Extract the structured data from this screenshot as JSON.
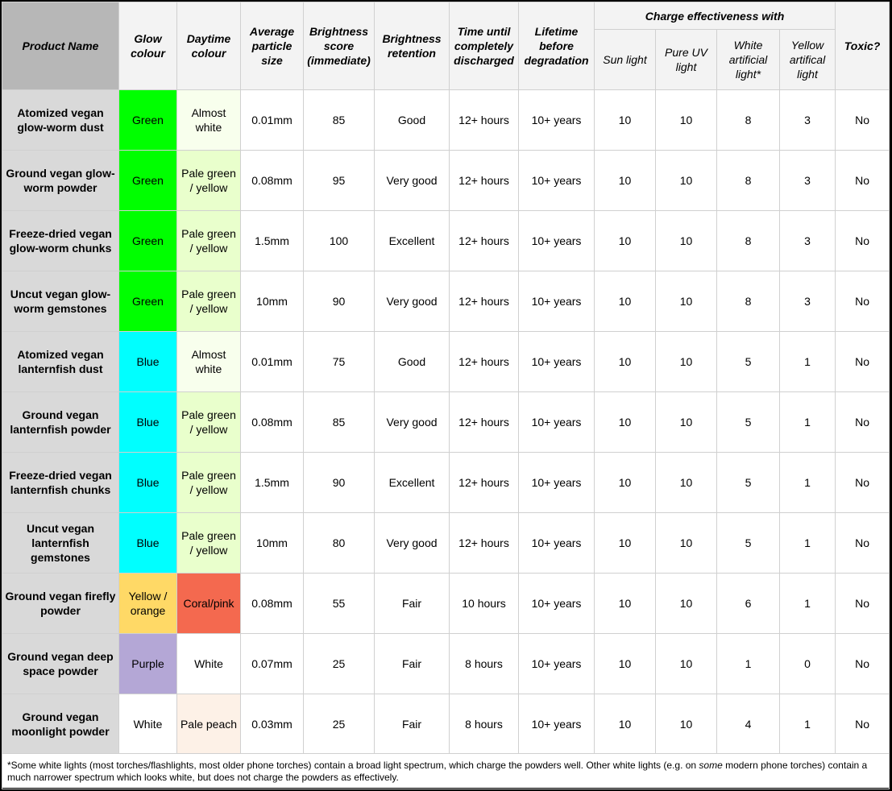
{
  "header": {
    "product_name": "Product Name",
    "glow_colour": "Glow colour",
    "daytime_colour": "Daytime colour",
    "particle_size": "Average particle size",
    "brightness_score": "Brightness score (immediate)",
    "brightness_retention": "Brightness retention",
    "time_discharged": "Time until completely discharged",
    "lifetime": "Lifetime before degradation",
    "charge_group": "Charge effectiveness with",
    "sun": "Sun light",
    "uv": "Pure UV light",
    "white": "White artificial light*",
    "yellow": "Yellow artifical light",
    "toxic": "Toxic?"
  },
  "colors": {
    "green": "#00ff00",
    "blue": "#00ffff",
    "yellow_orange": "#ffd966",
    "purple": "#b4a7d6",
    "white": "#ffffff",
    "almost_white": "#f8ffed",
    "pale_green": "#e9ffcc",
    "coral": "#f4694f",
    "pale_peach": "#fdf1e7"
  },
  "rows": [
    {
      "name": "Atomized vegan glow-worm dust",
      "glow": "Green",
      "day": "Almost white",
      "size": "0.01mm",
      "score": "85",
      "retention": "Good",
      "discharge": "12+ hours",
      "lifetime": "10+ years",
      "sun": "10",
      "uv": "10",
      "white": "8",
      "yellow": "3",
      "toxic": "No"
    },
    {
      "name": "Ground vegan glow-worm powder",
      "glow": "Green",
      "day": "Pale green / yellow",
      "size": "0.08mm",
      "score": "95",
      "retention": "Very good",
      "discharge": "12+ hours",
      "lifetime": "10+ years",
      "sun": "10",
      "uv": "10",
      "white": "8",
      "yellow": "3",
      "toxic": "No"
    },
    {
      "name": "Freeze-dried vegan glow-worm chunks",
      "glow": "Green",
      "day": "Pale green / yellow",
      "size": "1.5mm",
      "score": "100",
      "retention": "Excellent",
      "discharge": "12+ hours",
      "lifetime": "10+ years",
      "sun": "10",
      "uv": "10",
      "white": "8",
      "yellow": "3",
      "toxic": "No"
    },
    {
      "name": "Uncut vegan glow-worm gemstones",
      "glow": "Green",
      "day": "Pale green / yellow",
      "size": "10mm",
      "score": "90",
      "retention": "Very good",
      "discharge": "12+ hours",
      "lifetime": "10+ years",
      "sun": "10",
      "uv": "10",
      "white": "8",
      "yellow": "3",
      "toxic": "No"
    },
    {
      "name": "Atomized vegan lanternfish dust",
      "glow": "Blue",
      "day": "Almost white",
      "size": "0.01mm",
      "score": "75",
      "retention": "Good",
      "discharge": "12+ hours",
      "lifetime": "10+ years",
      "sun": "10",
      "uv": "10",
      "white": "5",
      "yellow": "1",
      "toxic": "No"
    },
    {
      "name": "Ground vegan lanternfish powder",
      "glow": "Blue",
      "day": "Pale green / yellow",
      "size": "0.08mm",
      "score": "85",
      "retention": "Very good",
      "discharge": "12+ hours",
      "lifetime": "10+ years",
      "sun": "10",
      "uv": "10",
      "white": "5",
      "yellow": "1",
      "toxic": "No"
    },
    {
      "name": "Freeze-dried vegan lanternfish chunks",
      "glow": "Blue",
      "day": "Pale green / yellow",
      "size": "1.5mm",
      "score": "90",
      "retention": "Excellent",
      "discharge": "12+ hours",
      "lifetime": "10+ years",
      "sun": "10",
      "uv": "10",
      "white": "5",
      "yellow": "1",
      "toxic": "No"
    },
    {
      "name": "Uncut vegan lanternfish gemstones",
      "glow": "Blue",
      "day": "Pale green / yellow",
      "size": "10mm",
      "score": "80",
      "retention": "Very good",
      "discharge": "12+ hours",
      "lifetime": "10+ years",
      "sun": "10",
      "uv": "10",
      "white": "5",
      "yellow": "1",
      "toxic": "No"
    },
    {
      "name": "Ground vegan firefly powder",
      "glow": "Yellow / orange",
      "day": "Coral/pink",
      "size": "0.08mm",
      "score": "55",
      "retention": "Fair",
      "discharge": "10 hours",
      "lifetime": "10+ years",
      "sun": "10",
      "uv": "10",
      "white": "6",
      "yellow": "1",
      "toxic": "No"
    },
    {
      "name": "Ground vegan deep space powder",
      "glow": "Purple",
      "day": "White",
      "size": "0.07mm",
      "score": "25",
      "retention": "Fair",
      "discharge": "8 hours",
      "lifetime": "10+ years",
      "sun": "10",
      "uv": "10",
      "white": "1",
      "yellow": "0",
      "toxic": "No"
    },
    {
      "name": "Ground vegan moonlight powder",
      "glow": "White",
      "day": "Pale peach",
      "size": "0.03mm",
      "score": "25",
      "retention": "Fair",
      "discharge": "8 hours",
      "lifetime": "10+ years",
      "sun": "10",
      "uv": "10",
      "white": "4",
      "yellow": "1",
      "toxic": "No"
    }
  ],
  "footnote": {
    "part1": "*Some white lights (most torches/flashlights, most older phone torches) contain a broad light spectrum, which charge the powders well. Other white lights (e.g. on ",
    "emphasis": "some",
    "part2": " modern phone torches) contain a much narrower spectrum which looks white, but does not charge the powders as effectively."
  }
}
